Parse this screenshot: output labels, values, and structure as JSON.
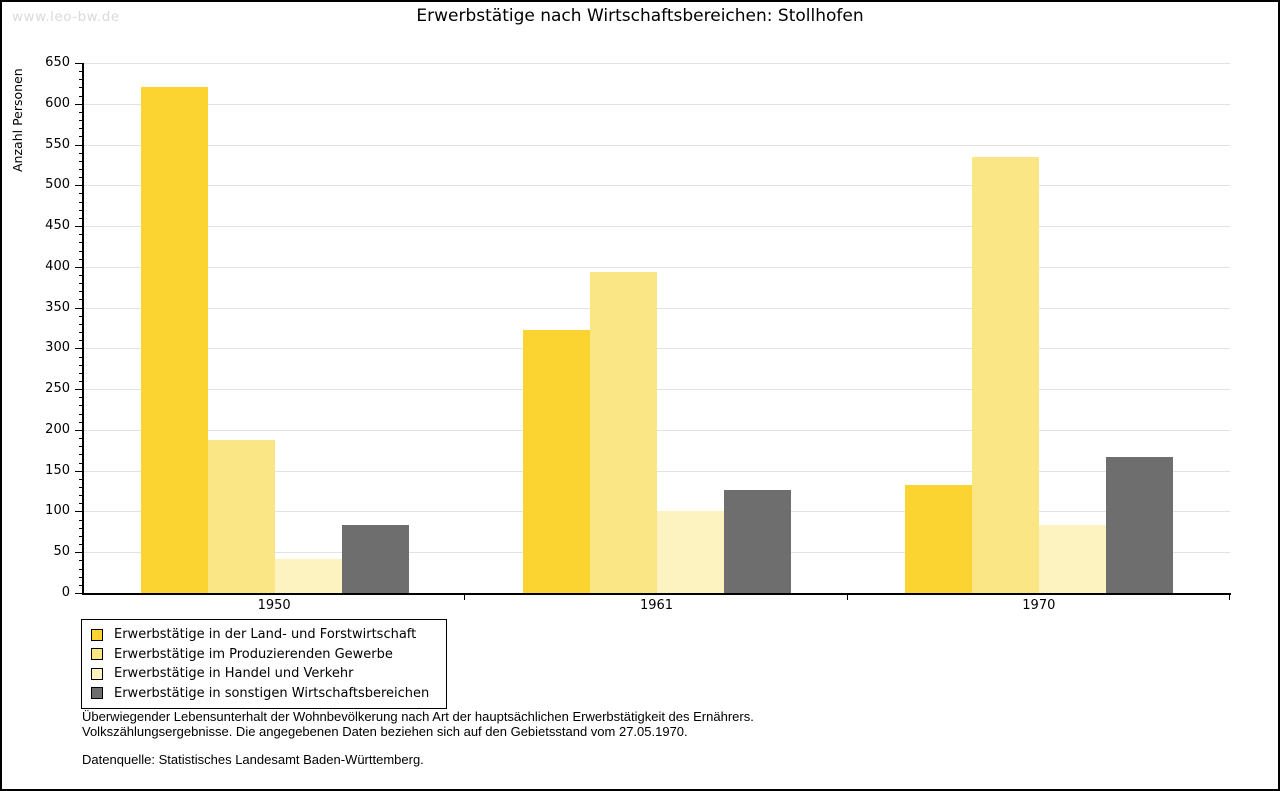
{
  "watermark": "www.leo-bw.de",
  "title": "Erwerbstätige nach Wirtschaftsbereichen: Stollhofen",
  "chart_data": {
    "type": "bar",
    "title": "Erwerbstätige nach Wirtschaftsbereichen: Stollhofen",
    "ylabel": "Anzahl Personen",
    "xlabel": "",
    "categories": [
      "1950",
      "1961",
      "1970"
    ],
    "series": [
      {
        "name": "Erwerbstätige in der Land- und Forstwirtschaft",
        "color": "#FCD432",
        "values": [
          620,
          322,
          133
        ]
      },
      {
        "name": "Erwerbstätige im Produzierenden Gewerbe",
        "color": "#FBE686",
        "values": [
          188,
          394,
          535
        ]
      },
      {
        "name": "Erwerbstätige in Handel und Verkehr",
        "color": "#FDF3C0",
        "values": [
          42,
          100,
          84
        ]
      },
      {
        "name": "Erwerbstätige in sonstigen Wirtschaftsbereichen",
        "color": "#6E6E6E",
        "values": [
          84,
          126,
          167
        ]
      }
    ],
    "ylim": [
      0,
      650
    ],
    "y_major_step": 50,
    "y_minor_step": 10,
    "grid": "horizontal-major",
    "legend_position": "bottom-left"
  },
  "colors": {
    "background": "#FFFFFF",
    "axis": "#000000",
    "gridline": "#E3E3E3",
    "watermark": "#DADADA"
  },
  "footnotes": {
    "line1": "Überwiegender Lebensunterhalt der Wohnbevölkerung nach Art der hauptsächlichen Erwerbstätigkeit des Ernährers.",
    "line2": "Volkszählungsergebnisse. Die angegebenen Daten beziehen sich auf den Gebietsstand vom 27.05.1970.",
    "source": "Datenquelle: Statistisches Landesamt Baden-Württemberg."
  }
}
